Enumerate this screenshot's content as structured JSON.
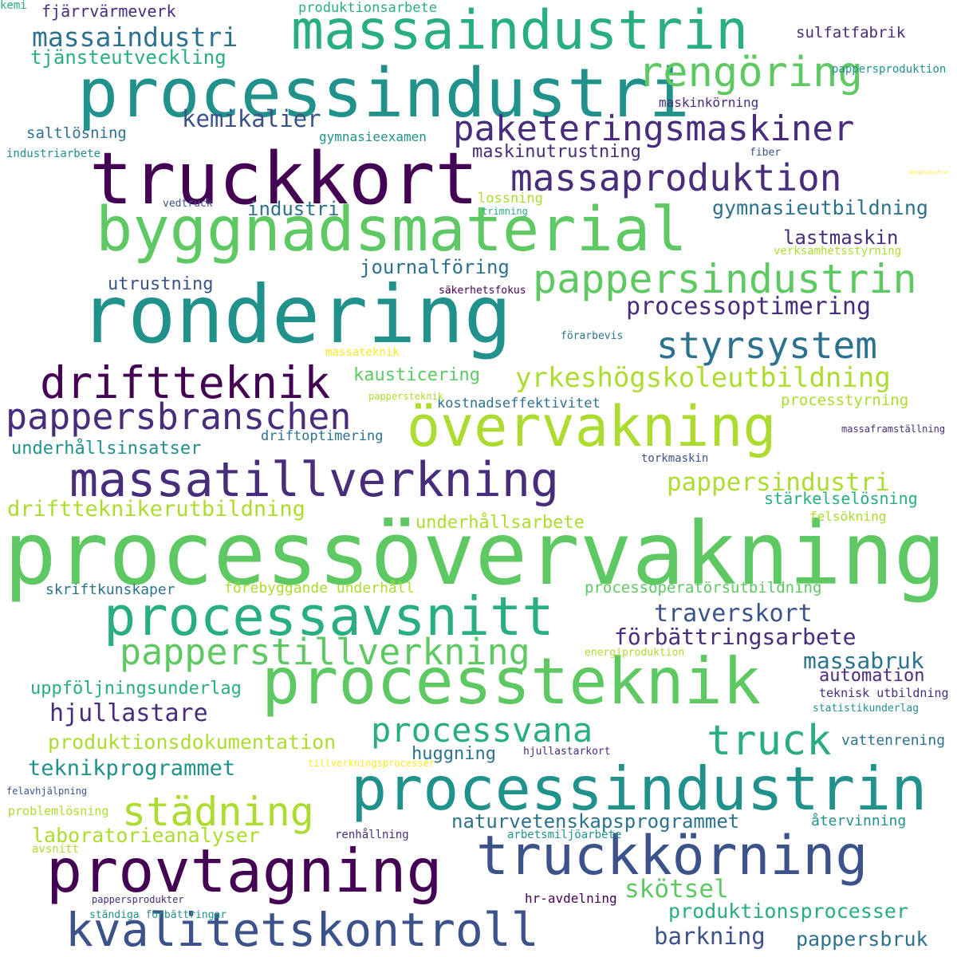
{
  "palette": {
    "background": "#ffffff",
    "dark_purple": "#440154",
    "purple": "#472d7b",
    "indigo": "#3b528b",
    "blue": "#2c728e",
    "teal": "#21918c",
    "green_teal": "#28ae80",
    "green": "#5ec962",
    "light_green": "#addc30",
    "yellow": "#fde725"
  },
  "words": [
    {
      "text": "processövervakning",
      "color": "#5ec962"
    },
    {
      "text": "rondering",
      "color": "#21918c"
    },
    {
      "text": "truckkort",
      "color": "#440154"
    },
    {
      "text": "processindustri",
      "color": "#21918c"
    },
    {
      "text": "byggnadsmaterial",
      "color": "#5ec962"
    },
    {
      "text": "processteknik",
      "color": "#5ec962"
    },
    {
      "text": "processindustrin",
      "color": "#21918c"
    },
    {
      "text": "massaindustrin",
      "color": "#28ae80"
    },
    {
      "text": "kvalitetskontroll",
      "color": "#3b528b"
    },
    {
      "text": "provtagning",
      "color": "#440154"
    },
    {
      "text": "massatillverkning",
      "color": "#472d7b"
    },
    {
      "text": "övervakning",
      "color": "#addc30"
    },
    {
      "text": "truckkörning",
      "color": "#3b528b"
    },
    {
      "text": "processavsnitt",
      "color": "#28ae80"
    },
    {
      "text": "pappersindustrin",
      "color": "#5ec962"
    },
    {
      "text": "rengöring",
      "color": "#5ec962"
    },
    {
      "text": "paketeringsmaskiner",
      "color": "#472d7b"
    },
    {
      "text": "massaproduktion",
      "color": "#472d7b"
    },
    {
      "text": "driftteknik",
      "color": "#440154"
    },
    {
      "text": "pappersbranschen",
      "color": "#472d7b"
    },
    {
      "text": "papperstillverkning",
      "color": "#5ec962"
    },
    {
      "text": "styrsystem",
      "color": "#2c728e"
    },
    {
      "text": "processvana",
      "color": "#28ae80"
    },
    {
      "text": "städning",
      "color": "#addc30"
    },
    {
      "text": "truck",
      "color": "#28ae80"
    },
    {
      "text": "massaindustri",
      "color": "#2c728e"
    },
    {
      "text": "yrkeshögskoleutbildning",
      "color": "#addc30"
    },
    {
      "text": "processoptimering",
      "color": "#472d7b"
    },
    {
      "text": "traverskort",
      "color": "#3b528b"
    },
    {
      "text": "förbättringsarbete",
      "color": "#472d7b"
    },
    {
      "text": "teknikprogrammet",
      "color": "#21918c"
    },
    {
      "text": "hjullastare",
      "color": "#472d7b"
    },
    {
      "text": "pappersindustri",
      "color": "#addc30"
    },
    {
      "text": "skötsel",
      "color": "#5ec962"
    },
    {
      "text": "kemikalier",
      "color": "#3b528b"
    },
    {
      "text": "massabruk",
      "color": "#2c728e"
    },
    {
      "text": "barkning",
      "color": "#3b528b"
    },
    {
      "text": "produktionsprocesser",
      "color": "#28ae80"
    },
    {
      "text": "pappersbruk",
      "color": "#2c728e"
    },
    {
      "text": "driftteknikerutbildning",
      "color": "#addc30"
    },
    {
      "text": "laboratorieanalyser",
      "color": "#addc30"
    },
    {
      "text": "naturvetenskapsprogrammet",
      "color": "#2c728e"
    },
    {
      "text": "produktionsdokumentation",
      "color": "#addc30"
    },
    {
      "text": "gymnasieutbildning",
      "color": "#2c728e"
    },
    {
      "text": "lastmaskin",
      "color": "#472d7b"
    },
    {
      "text": "journalföring",
      "color": "#2c728e"
    },
    {
      "text": "underhållsinsatser",
      "color": "#21918c"
    },
    {
      "text": "uppföljningsunderlag",
      "color": "#28ae80"
    },
    {
      "text": "tjänsteutveckling",
      "color": "#28ae80"
    },
    {
      "text": "industri",
      "color": "#2c728e"
    },
    {
      "text": "utrustning",
      "color": "#3b528b"
    },
    {
      "text": "kausticering",
      "color": "#5ec962"
    },
    {
      "text": "automation",
      "color": "#472d7b"
    },
    {
      "text": "huggning",
      "color": "#2c728e"
    },
    {
      "text": "maskinutrustning",
      "color": "#472d7b"
    },
    {
      "text": "underhållsarbete",
      "color": "#addc30"
    },
    {
      "text": "stärkelselösning",
      "color": "#28ae80"
    },
    {
      "text": "processtyrning",
      "color": "#addc30"
    },
    {
      "text": "kostnadseffektivitet",
      "color": "#2c728e"
    },
    {
      "text": "driftoptimering",
      "color": "#2c728e"
    },
    {
      "text": "förebyggande underhåll",
      "color": "#addc30"
    },
    {
      "text": "processoperatörsutbildning",
      "color": "#5ec962"
    },
    {
      "text": "skriftkunskaper",
      "color": "#2c728e"
    },
    {
      "text": "saltlösning",
      "color": "#2c728e"
    },
    {
      "text": "sulfatfabrik",
      "color": "#472d7b"
    },
    {
      "text": "fjärrvärmeverk",
      "color": "#472d7b"
    },
    {
      "text": "teknisk utbildning",
      "color": "#472d7b"
    },
    {
      "text": "vattenrening",
      "color": "#2c728e"
    },
    {
      "text": "återvinning",
      "color": "#21918c"
    },
    {
      "text": "lossning",
      "color": "#addc30"
    },
    {
      "text": "gymnasieexamen",
      "color": "#21918c"
    },
    {
      "text": "maskinkörning",
      "color": "#472d7b"
    },
    {
      "text": "produktionsarbete",
      "color": "#28ae80"
    },
    {
      "text": "pappersproduktion",
      "color": "#21918c"
    },
    {
      "text": "felsökning",
      "color": "#addc30"
    },
    {
      "text": "problemlösning",
      "color": "#addc30"
    },
    {
      "text": "renhållning",
      "color": "#472d7b"
    },
    {
      "text": "arbetsmiljöarbete",
      "color": "#21918c"
    },
    {
      "text": "hr-avdelning",
      "color": "#440154"
    },
    {
      "text": "avsnitt",
      "color": "#addc30"
    },
    {
      "text": "verksamhetsstyrning",
      "color": "#addc30"
    },
    {
      "text": "säkerhetsfokus",
      "color": "#440154"
    },
    {
      "text": "förarbevis",
      "color": "#2c728e"
    },
    {
      "text": "massateknik",
      "color": "#fde725"
    },
    {
      "text": "energiproduktion",
      "color": "#addc30"
    },
    {
      "text": "statistikunderlag",
      "color": "#21918c"
    },
    {
      "text": "hjullastarkort",
      "color": "#472d7b"
    },
    {
      "text": "tillverkningsprocesser",
      "color": "#fde725"
    },
    {
      "text": "felavhjälpning",
      "color": "#3b528b"
    },
    {
      "text": "pappersprodukter",
      "color": "#472d7b"
    },
    {
      "text": "ständiga förbättringar",
      "color": "#21918c"
    },
    {
      "text": "torkmaskin",
      "color": "#3b528b"
    },
    {
      "text": "massaframställning",
      "color": "#472d7b"
    },
    {
      "text": "pappersteknik",
      "color": "#addc30"
    },
    {
      "text": "fiber",
      "color": "#3b528b"
    },
    {
      "text": "industriarbete",
      "color": "#21918c"
    },
    {
      "text": "vedtruck",
      "color": "#3b528b"
    },
    {
      "text": "trimning",
      "color": "#28ae80"
    },
    {
      "text": "skogsindustrin",
      "color": "#fde725"
    },
    {
      "text": "kemi",
      "color": "#28ae80"
    }
  ]
}
